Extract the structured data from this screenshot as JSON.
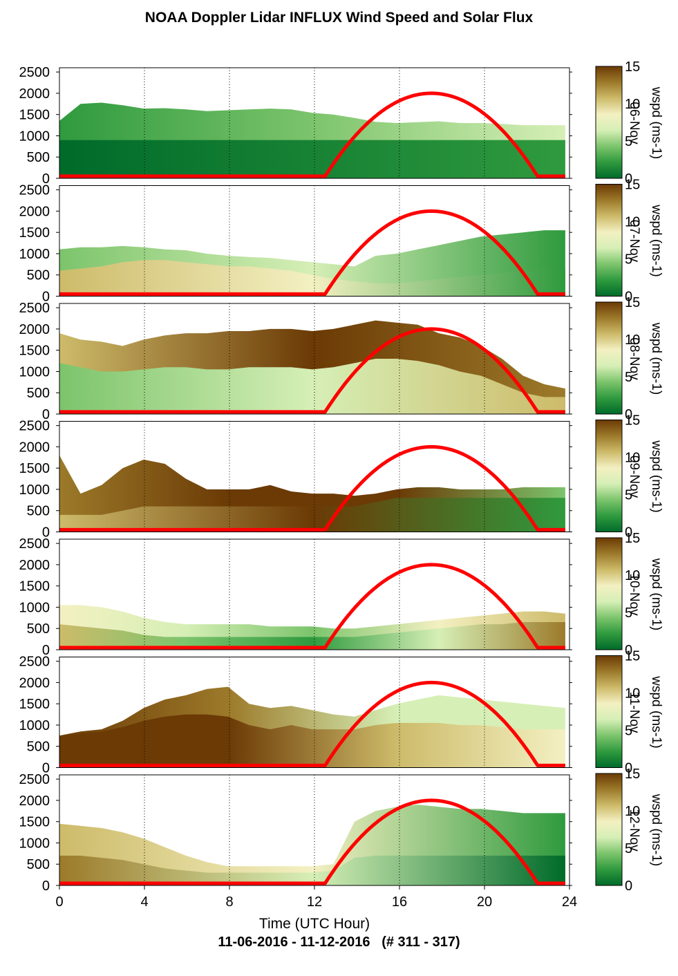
{
  "title": "NOAA Doppler Lidar INFLUX Wind Speed and Solar Flux",
  "subtitle": "11-06-2016 - 11-12-2016   (# 311 - 317)",
  "colors": {
    "solar_curve": "#ff0000",
    "colormap": [
      "#006b2a",
      "#2f9a3e",
      "#7cc46c",
      "#d6efb6",
      "#f3f0c2",
      "#cdbb6a",
      "#9c7a2a",
      "#6b3a05"
    ]
  },
  "chart_data": {
    "type": "heatmap",
    "xlabel": "Time (UTC Hour)",
    "x_ticks": [
      0,
      4,
      8,
      12,
      16,
      20,
      24
    ],
    "xlim": [
      0,
      24
    ],
    "y_ticks": [
      0,
      500,
      1000,
      1500,
      2000,
      2500
    ],
    "ylim": [
      0,
      2600
    ],
    "colorbar": {
      "label": "wspd (ms-1)",
      "ticks": [
        0,
        5,
        10,
        15
      ],
      "range": [
        0,
        15
      ]
    },
    "solar_flux": {
      "sunrise_hour": 12.5,
      "sunset_hour": 22.5,
      "peak_hour": 17.5,
      "peak_value": 2000
    },
    "panels": [
      {
        "day_label": "06-Nov",
        "data_end_hour": 23.8,
        "layers": [
          {
            "top": [
              1350,
              1750,
              1780,
              1720,
              1640,
              1650,
              1620,
              1580,
              1600,
              1620,
              1640,
              1620,
              1540,
              1500,
              1420,
              1330,
              1300,
              1320,
              1340,
              1300,
              1300,
              1280,
              1250,
              1250,
              1250
            ],
            "colors": [
              "#2f9a3e",
              "#7cc46c",
              "#d6efb6"
            ]
          },
          {
            "top": [
              900,
              900,
              900,
              900,
              900,
              900,
              900,
              900,
              900,
              900,
              900,
              900,
              900,
              900,
              900,
              900,
              900,
              900,
              900,
              900,
              900,
              900,
              900,
              900,
              900
            ],
            "colors": [
              "#006b2a",
              "#2f9a3e"
            ]
          }
        ]
      },
      {
        "day_label": "07-Nov",
        "data_end_hour": 23.8,
        "layers": [
          {
            "top": [
              1100,
              1150,
              1150,
              1180,
              1150,
              1100,
              1080,
              1000,
              950,
              920,
              900,
              850,
              800,
              750,
              700,
              950,
              1000,
              1100,
              1200,
              1300,
              1400,
              1450,
              1500,
              1550,
              1550
            ],
            "colors": [
              "#7cc46c",
              "#d6efb6",
              "#2f9a3e"
            ]
          },
          {
            "top": [
              600,
              650,
              700,
              800,
              850,
              850,
              800,
              750,
              700,
              700,
              650,
              600,
              500,
              400,
              350,
              300,
              300,
              350,
              400,
              450,
              500,
              550,
              600,
              650,
              650
            ],
            "colors": [
              "#cdbb6a",
              "#f3f0c2",
              "#2f9a3e"
            ]
          }
        ]
      },
      {
        "day_label": "08-Nov",
        "data_end_hour": 23.8,
        "layers": [
          {
            "top": [
              1900,
              1750,
              1700,
              1600,
              1750,
              1850,
              1900,
              1900,
              1950,
              1950,
              2000,
              2000,
              1950,
              2000,
              2100,
              2200,
              2150,
              2100,
              1900,
              1800,
              1600,
              1300,
              900,
              700,
              600
            ],
            "colors": [
              "#cdbb6a",
              "#6b3a05",
              "#9c7a2a"
            ]
          },
          {
            "top": [
              1200,
              1100,
              1000,
              1000,
              1050,
              1100,
              1100,
              1050,
              1050,
              1100,
              1100,
              1100,
              1050,
              1100,
              1200,
              1300,
              1300,
              1250,
              1150,
              1000,
              900,
              700,
              500,
              400,
              400
            ],
            "colors": [
              "#7cc46c",
              "#d6efb6",
              "#cdbb6a"
            ]
          }
        ]
      },
      {
        "day_label": "09-Nov",
        "data_end_hour": 23.8,
        "layers": [
          {
            "top": [
              1800,
              900,
              1100,
              1500,
              1700,
              1600,
              1250,
              1000,
              1000,
              1000,
              1100,
              950,
              900,
              900,
              850,
              900,
              1000,
              1050,
              1050,
              1000,
              1000,
              1000,
              1050,
              1050,
              1050
            ],
            "colors": [
              "#9c7a2a",
              "#6b3a05",
              "#6b3a05",
              "#7cc46c"
            ]
          },
          {
            "top": [
              400,
              400,
              400,
              500,
              600,
              600,
              600,
              600,
              600,
              600,
              600,
              600,
              600,
              600,
              600,
              700,
              800,
              800,
              800,
              800,
              800,
              800,
              800,
              800,
              800
            ],
            "colors": [
              "#cdbb6a",
              "#6b3a05",
              "#2f9a3e"
            ]
          }
        ]
      },
      {
        "day_label": "10-Nov",
        "data_end_hour": 23.8,
        "layers": [
          {
            "top": [
              1050,
              1050,
              1000,
              900,
              750,
              650,
              600,
              600,
              600,
              600,
              550,
              550,
              550,
              500,
              500,
              550,
              600,
              650,
              700,
              750,
              800,
              850,
              900,
              900,
              850
            ],
            "colors": [
              "#f3f0c2",
              "#d6efb6",
              "#7cc46c",
              "#f3f0c2",
              "#cdbb6a"
            ]
          },
          {
            "top": [
              600,
              550,
              500,
              450,
              350,
              300,
              300,
              300,
              300,
              300,
              300,
              300,
              300,
              300,
              300,
              350,
              400,
              450,
              500,
              550,
              600,
              600,
              650,
              650,
              650
            ],
            "colors": [
              "#cdbb6a",
              "#7cc46c",
              "#2f9a3e",
              "#d6efb6",
              "#9c7a2a"
            ]
          }
        ]
      },
      {
        "day_label": "11-Nov",
        "data_end_hour": 23.8,
        "layers": [
          {
            "top": [
              750,
              850,
              900,
              1100,
              1400,
              1600,
              1700,
              1850,
              1900,
              1500,
              1400,
              1450,
              1350,
              1250,
              1200,
              1350,
              1500,
              1600,
              1700,
              1650,
              1600,
              1550,
              1500,
              1450,
              1400
            ],
            "colors": [
              "#6b3a05",
              "#9c7a2a",
              "#d6efb6",
              "#d6efb6"
            ]
          },
          {
            "top": [
              700,
              800,
              850,
              950,
              1100,
              1200,
              1250,
              1250,
              1200,
              1000,
              900,
              1000,
              900,
              900,
              900,
              1000,
              1050,
              1050,
              1050,
              1000,
              1000,
              950,
              900,
              900,
              900
            ],
            "colors": [
              "#6b3a05",
              "#6b3a05",
              "#cdbb6a",
              "#f3f0c2"
            ]
          }
        ]
      },
      {
        "day_label": "12-Nov",
        "data_end_hour": 23.8,
        "layers": [
          {
            "top": [
              1450,
              1400,
              1350,
              1250,
              1100,
              900,
              700,
              550,
              450,
              450,
              450,
              450,
              450,
              500,
              1500,
              1750,
              1850,
              1900,
              1850,
              1800,
              1800,
              1750,
              1700,
              1700,
              1700
            ],
            "colors": [
              "#cdbb6a",
              "#f3f0c2",
              "#2f9a3e"
            ]
          },
          {
            "top": [
              700,
              700,
              650,
              600,
              500,
              400,
              350,
              300,
              300,
              300,
              300,
              300,
              300,
              350,
              650,
              700,
              700,
              700,
              700,
              700,
              700,
              700,
              700,
              700,
              700
            ],
            "colors": [
              "#9c7a2a",
              "#d6efb6",
              "#006b2a"
            ]
          }
        ]
      }
    ]
  }
}
